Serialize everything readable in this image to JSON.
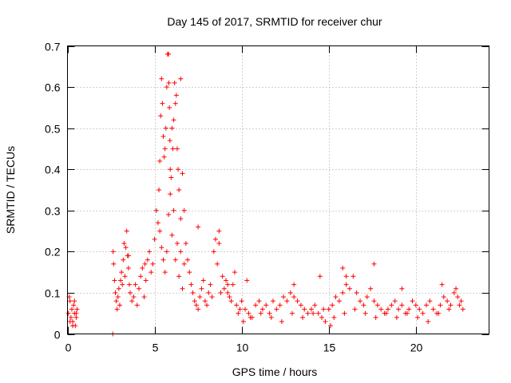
{
  "chart_data": {
    "type": "scatter",
    "title": "Day 145 of 2017, SRMTID for receiver chur",
    "xlabel": "GPS time / hours",
    "ylabel": "SRMTID / TECUs",
    "xlim": [
      0,
      24.2
    ],
    "ylim": [
      0,
      0.7
    ],
    "xticks": [
      0,
      5,
      10,
      15,
      20
    ],
    "xtick_labels": [
      "0",
      "5",
      "10",
      "15",
      "20"
    ],
    "yticks": [
      0,
      0.1,
      0.2,
      0.3,
      0.4,
      0.5,
      0.6,
      0.7
    ],
    "ytick_labels": [
      "0",
      "0.1",
      "0.2",
      "0.3",
      "0.4",
      "0.5",
      "0.6",
      "0.7"
    ],
    "grid": true,
    "marker": "plus",
    "color": "#ff0000",
    "series": [
      {
        "name": "SRMTID",
        "x": [
          0.05,
          0.1,
          0.15,
          0.2,
          0.25,
          0.3,
          0.35,
          0.4,
          0.45,
          0.5,
          0.55,
          0.15,
          0.3,
          0.4,
          0.5,
          2.6,
          2.62,
          2.65,
          2.7,
          2.75,
          2.8,
          2.85,
          2.9,
          2.95,
          3.0,
          3.05,
          3.1,
          3.15,
          3.2,
          3.3,
          3.35,
          3.4,
          3.45,
          3.5,
          3.55,
          3.6,
          3.7,
          3.8,
          3.9,
          4.0,
          4.1,
          4.2,
          4.3,
          4.4,
          4.5,
          4.6,
          4.7,
          4.8,
          4.9,
          5.0,
          5.1,
          5.2,
          5.25,
          5.3,
          5.35,
          5.4,
          5.45,
          5.5,
          5.55,
          5.6,
          5.65,
          5.7,
          5.75,
          5.8,
          5.82,
          5.85,
          5.88,
          5.9,
          5.95,
          6.0,
          6.05,
          6.1,
          6.15,
          6.2,
          6.25,
          6.3,
          6.35,
          6.4,
          6.5,
          6.6,
          6.7,
          6.8,
          6.9,
          7.0,
          5.3,
          5.4,
          5.5,
          5.6,
          5.7,
          5.8,
          5.9,
          6.0,
          6.1,
          6.2,
          6.3,
          6.4,
          6.5,
          6.6,
          6.7,
          7.1,
          7.2,
          7.3,
          7.4,
          7.5,
          7.6,
          7.7,
          7.8,
          7.9,
          8.0,
          8.1,
          8.2,
          8.3,
          8.4,
          8.5,
          8.6,
          8.7,
          8.8,
          8.9,
          9.0,
          9.1,
          9.2,
          9.3,
          9.4,
          9.5,
          9.6,
          9.7,
          9.8,
          9.9,
          10.0,
          10.2,
          10.4,
          10.6,
          10.8,
          11.0,
          11.2,
          11.4,
          11.6,
          11.8,
          12.0,
          12.2,
          12.4,
          12.6,
          12.8,
          13.0,
          13.2,
          13.4,
          13.6,
          13.8,
          14.0,
          14.2,
          14.4,
          14.6,
          14.8,
          15.0,
          15.2,
          15.4,
          15.6,
          15.8,
          16.0,
          16.2,
          16.4,
          16.6,
          16.8,
          17.0,
          17.2,
          17.4,
          17.6,
          17.8,
          18.0,
          18.2,
          18.4,
          18.6,
          18.8,
          19.0,
          19.2,
          19.4,
          19.6,
          19.8,
          20.0,
          20.2,
          20.4,
          20.6,
          20.8,
          21.0,
          21.2,
          21.4,
          21.6,
          21.8,
          22.0,
          22.2,
          22.4,
          22.6,
          22.7,
          10.1,
          10.5,
          11.1,
          11.7,
          12.3,
          12.9,
          13.5,
          14.1,
          14.7,
          15.3,
          15.9,
          16.5,
          17.1,
          17.7,
          18.3,
          18.9,
          19.5,
          20.1,
          20.7,
          21.3,
          21.9,
          22.5,
          3.25,
          3.5,
          4.45,
          6.5,
          7.5,
          8.7,
          9.2,
          10.3,
          13.0,
          14.5,
          15.1,
          15.8,
          16.0,
          17.6,
          19.2,
          21.5,
          22.3
        ],
        "y": [
          0.05,
          0.09,
          0.08,
          0.04,
          0.06,
          0.03,
          0.07,
          0.05,
          0.02,
          0.04,
          0.06,
          0.03,
          0.02,
          0.08,
          0.05,
          0.0,
          0.2,
          0.17,
          0.13,
          0.1,
          0.08,
          0.06,
          0.09,
          0.11,
          0.07,
          0.13,
          0.15,
          0.12,
          0.18,
          0.14,
          0.21,
          0.25,
          0.19,
          0.16,
          0.12,
          0.1,
          0.08,
          0.09,
          0.12,
          0.07,
          0.11,
          0.14,
          0.16,
          0.09,
          0.13,
          0.18,
          0.2,
          0.15,
          0.17,
          0.23,
          0.3,
          0.27,
          0.35,
          0.42,
          0.53,
          0.62,
          0.56,
          0.48,
          0.43,
          0.45,
          0.5,
          0.6,
          0.68,
          0.68,
          0.61,
          0.55,
          0.47,
          0.4,
          0.38,
          0.5,
          0.45,
          0.52,
          0.61,
          0.56,
          0.58,
          0.45,
          0.4,
          0.35,
          0.28,
          0.39,
          0.3,
          0.22,
          0.18,
          0.15,
          0.25,
          0.21,
          0.18,
          0.15,
          0.2,
          0.29,
          0.34,
          0.24,
          0.3,
          0.18,
          0.22,
          0.14,
          0.2,
          0.11,
          0.17,
          0.12,
          0.1,
          0.08,
          0.07,
          0.06,
          0.09,
          0.11,
          0.13,
          0.08,
          0.07,
          0.1,
          0.12,
          0.09,
          0.2,
          0.23,
          0.17,
          0.22,
          0.1,
          0.14,
          0.11,
          0.13,
          0.1,
          0.09,
          0.08,
          0.12,
          0.15,
          0.07,
          0.05,
          0.06,
          0.08,
          0.06,
          0.05,
          0.04,
          0.07,
          0.08,
          0.06,
          0.07,
          0.05,
          0.08,
          0.06,
          0.07,
          0.09,
          0.08,
          0.1,
          0.09,
          0.08,
          0.07,
          0.06,
          0.05,
          0.06,
          0.07,
          0.05,
          0.04,
          0.03,
          0.06,
          0.07,
          0.09,
          0.08,
          0.1,
          0.12,
          0.11,
          0.14,
          0.1,
          0.08,
          0.07,
          0.09,
          0.11,
          0.08,
          0.07,
          0.06,
          0.05,
          0.06,
          0.07,
          0.08,
          0.06,
          0.07,
          0.05,
          0.06,
          0.08,
          0.07,
          0.06,
          0.05,
          0.07,
          0.08,
          0.06,
          0.05,
          0.07,
          0.09,
          0.08,
          0.07,
          0.1,
          0.09,
          0.08,
          0.06,
          0.03,
          0.04,
          0.05,
          0.04,
          0.03,
          0.05,
          0.04,
          0.05,
          0.06,
          0.04,
          0.05,
          0.06,
          0.05,
          0.04,
          0.05,
          0.04,
          0.05,
          0.04,
          0.03,
          0.05,
          0.06,
          0.07,
          0.22,
          0.19,
          0.17,
          0.62,
          0.26,
          0.25,
          0.12,
          0.13,
          0.12,
          0.14,
          0.02,
          0.16,
          0.14,
          0.17,
          0.11,
          0.12,
          0.11
        ]
      }
    ]
  }
}
